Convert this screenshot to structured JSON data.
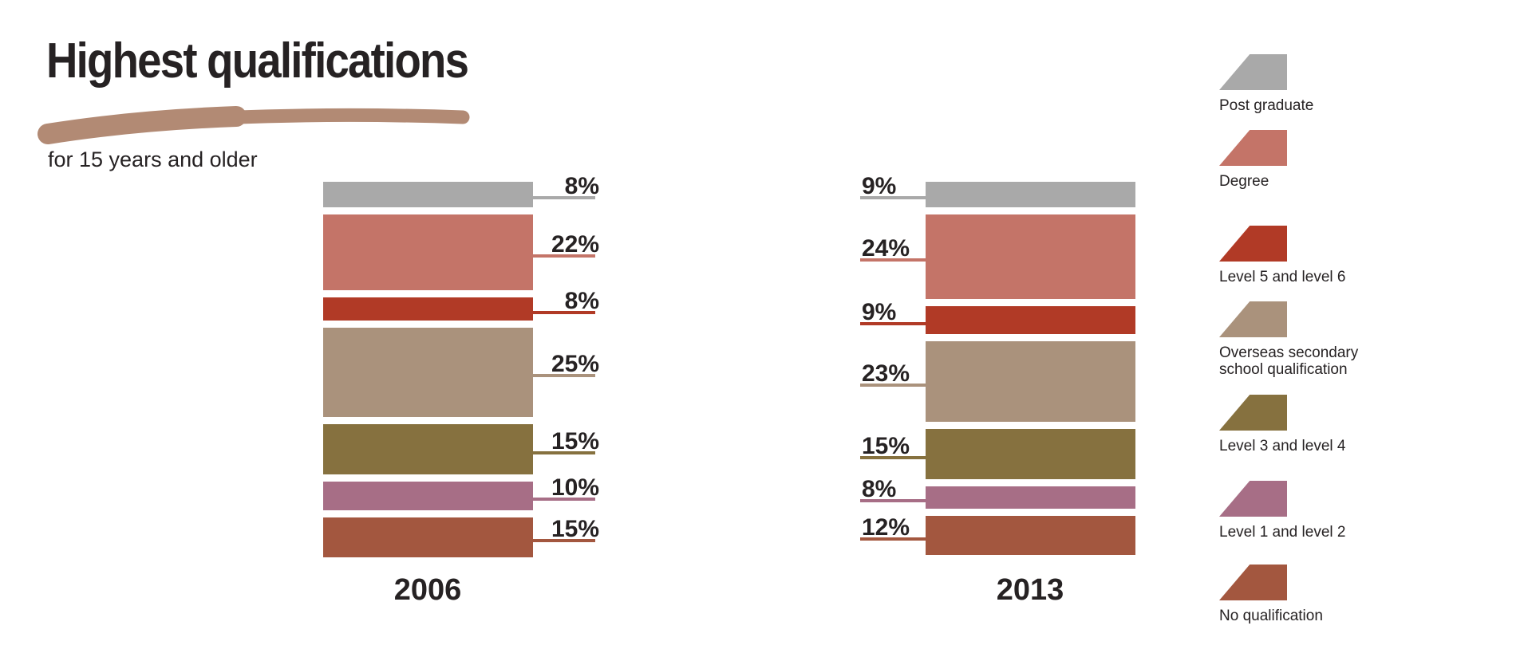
{
  "header": {
    "title": "Highest qualifications",
    "subtitle": "for 15 years and older"
  },
  "colors": {
    "background": "#ffffff",
    "text": "#262223",
    "brush_underline": "#b28a74"
  },
  "chart_data": {
    "type": "bar",
    "variant": "stacked-segment-comparison",
    "title": "Highest qualifications",
    "subtitle": "for 15 years and older",
    "unit": "%",
    "categories": [
      "Post graduate",
      "Degree",
      "Level 5 and level 6",
      "Overseas secondary school qualification",
      "Level 3 and level 4",
      "Level 1 and level 2",
      "No qualification"
    ],
    "colors": [
      "#a9a9a9",
      "#c47468",
      "#b13a26",
      "#aa927c",
      "#86713f",
      "#a76e86",
      "#a3573f"
    ],
    "series": [
      {
        "name": "2006",
        "values": [
          8,
          22,
          8,
          25,
          15,
          10,
          15
        ],
        "labels": [
          "8%",
          "22%",
          "8%",
          "25%",
          "15%",
          "10%",
          "15%"
        ],
        "label_side": "right"
      },
      {
        "name": "2013",
        "values": [
          9,
          24,
          9,
          23,
          15,
          8,
          12
        ],
        "labels": [
          "9%",
          "24%",
          "9%",
          "23%",
          "15%",
          "8%",
          "12%"
        ],
        "label_side": "left"
      }
    ],
    "legend_position": "right",
    "grid": false
  }
}
